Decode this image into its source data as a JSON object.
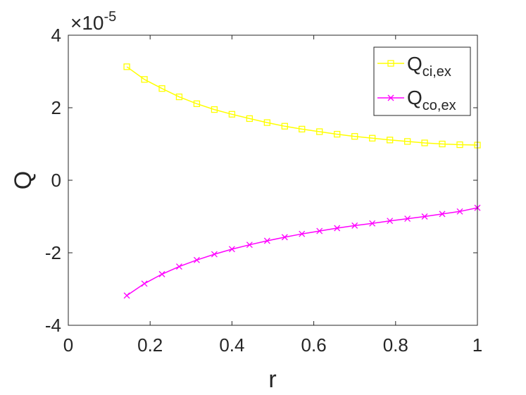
{
  "chart_data": {
    "type": "line",
    "title": "",
    "xlabel": "r",
    "ylabel": "Q",
    "xlim": [
      0,
      1
    ],
    "ylim": [
      -4,
      4
    ],
    "xticks": [
      0,
      0.2,
      0.4,
      0.6,
      0.8,
      1
    ],
    "xtick_labels": [
      "0",
      "0.2",
      "0.4",
      "0.6",
      "0.8",
      "1"
    ],
    "yticks": [
      -4,
      -2,
      0,
      2,
      4
    ],
    "ytick_labels": [
      "-4",
      "-2",
      "0",
      "2",
      "4"
    ],
    "y_exponent": {
      "base": "×10",
      "power": "-5"
    },
    "grid": false,
    "legend_position": "top-right",
    "x": [
      0.143,
      0.186,
      0.229,
      0.271,
      0.314,
      0.357,
      0.4,
      0.443,
      0.486,
      0.529,
      0.571,
      0.614,
      0.657,
      0.7,
      0.743,
      0.786,
      0.829,
      0.871,
      0.914,
      0.957,
      1.0
    ],
    "series": [
      {
        "name": "Q",
        "subscript": "ci,ex",
        "color": "#ffff00",
        "marker": "square",
        "values": [
          3.13,
          2.78,
          2.53,
          2.3,
          2.11,
          1.95,
          1.82,
          1.7,
          1.59,
          1.49,
          1.41,
          1.34,
          1.27,
          1.21,
          1.16,
          1.11,
          1.07,
          1.03,
          1.0,
          0.98,
          0.97
        ]
      },
      {
        "name": "Q",
        "subscript": "co,ex",
        "color": "#ff00ff",
        "marker": "x",
        "values": [
          -3.18,
          -2.85,
          -2.59,
          -2.38,
          -2.2,
          -2.04,
          -1.9,
          -1.78,
          -1.67,
          -1.57,
          -1.48,
          -1.4,
          -1.32,
          -1.25,
          -1.19,
          -1.12,
          -1.06,
          -1.0,
          -0.93,
          -0.86,
          -0.76
        ]
      }
    ]
  }
}
